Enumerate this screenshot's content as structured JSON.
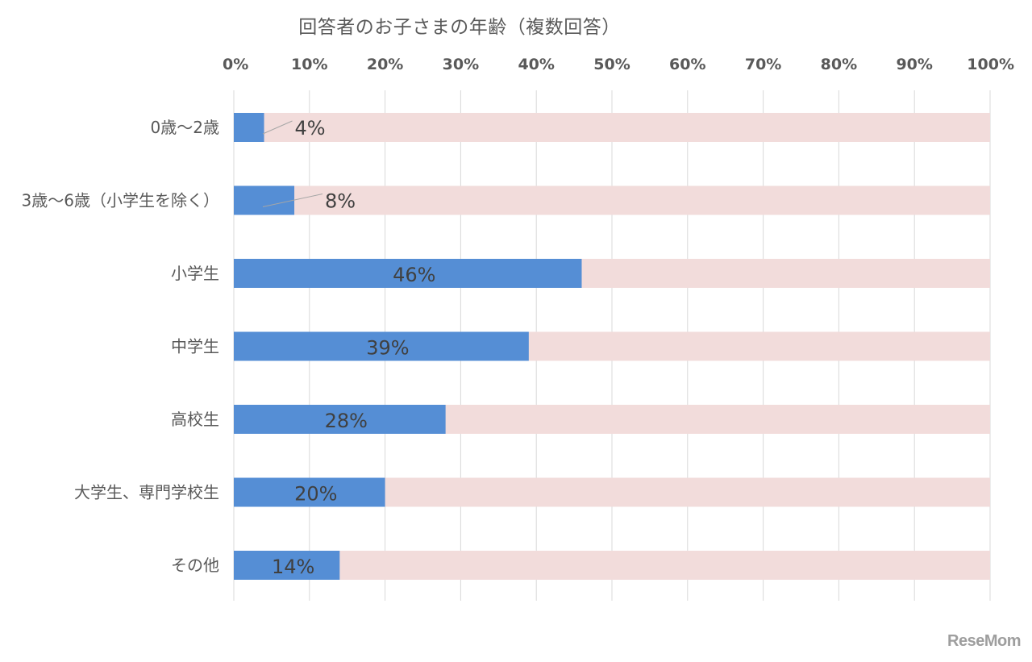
{
  "chart_data": {
    "type": "bar",
    "orientation": "horizontal",
    "title": "回答者のお子さまの年齢（複数回答）",
    "categories": [
      "0歳～2歳",
      "3歳～6歳（小学生を除く）",
      "小学生",
      "中学生",
      "高校生",
      "大学生、専門学校生",
      "その他"
    ],
    "values": [
      4,
      8,
      46,
      39,
      28,
      20,
      14
    ],
    "value_labels": [
      "4%",
      "8%",
      "46%",
      "39%",
      "28%",
      "20%",
      "14%"
    ],
    "x_ticks": [
      "0%",
      "10%",
      "20%",
      "30%",
      "40%",
      "50%",
      "60%",
      "70%",
      "80%",
      "90%",
      "100%"
    ],
    "xlim": [
      0,
      100
    ],
    "xaxis_position": "top",
    "grid": true,
    "background_bar": true,
    "colors": {
      "bar": "#558ED5",
      "background_bar": "#F2DCDB",
      "grid": "#D9D9D9",
      "text": "#595959",
      "data_label": "#404040"
    }
  },
  "watermark": "ReseMom"
}
